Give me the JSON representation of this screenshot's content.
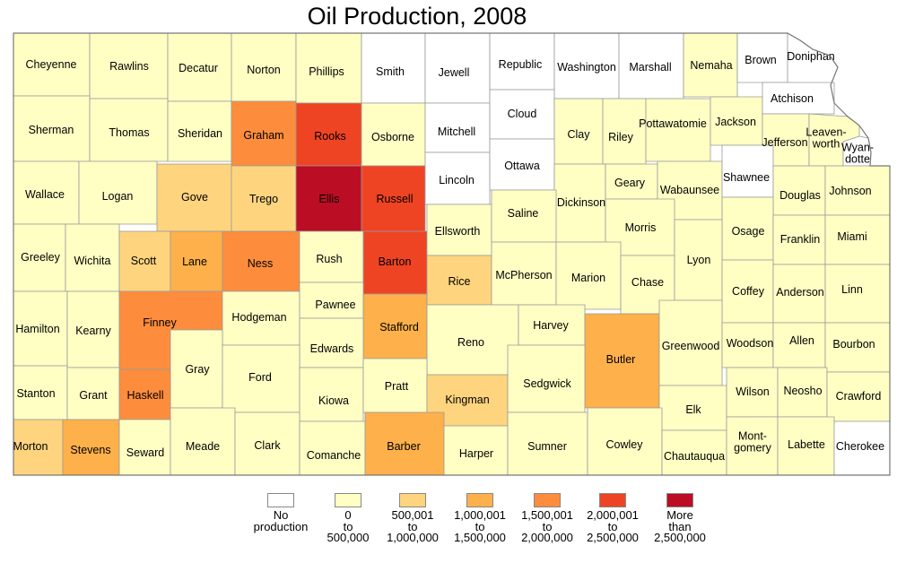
{
  "title": "Oil Production, 2008",
  "colors": {
    "none": "#ffffff",
    "c1": "#ffffc4",
    "c2": "#fed47e",
    "c3": "#feb04a",
    "c4": "#fd8d3c",
    "c5": "#ef4424",
    "c6": "#bb0d24"
  },
  "legend": [
    {
      "cls": "none",
      "lines": [
        "No",
        "production"
      ]
    },
    {
      "cls": "c1",
      "lines": [
        "0",
        "to",
        "500,000"
      ]
    },
    {
      "cls": "c2",
      "lines": [
        "500,001",
        "to",
        "1,000,000"
      ]
    },
    {
      "cls": "c3",
      "lines": [
        "1,000,001",
        "to",
        "1,500,000"
      ]
    },
    {
      "cls": "c4",
      "lines": [
        "1,500,001",
        "to",
        "2,000,000"
      ]
    },
    {
      "cls": "c5",
      "lines": [
        "2,000,001",
        "to",
        "2,500,000"
      ]
    },
    {
      "cls": "c6",
      "lines": [
        "More",
        "than",
        "2,500,000"
      ]
    }
  ],
  "counties": [
    {
      "name": "Cheyenne",
      "cls": "c1"
    },
    {
      "name": "Rawlins",
      "cls": "c1"
    },
    {
      "name": "Decatur",
      "cls": "c1"
    },
    {
      "name": "Norton",
      "cls": "c1"
    },
    {
      "name": "Phillips",
      "cls": "c1"
    },
    {
      "name": "Smith",
      "cls": "none"
    },
    {
      "name": "Jewell",
      "cls": "none"
    },
    {
      "name": "Republic",
      "cls": "none"
    },
    {
      "name": "Washington",
      "cls": "none"
    },
    {
      "name": "Marshall",
      "cls": "none"
    },
    {
      "name": "Nemaha",
      "cls": "c1"
    },
    {
      "name": "Brown",
      "cls": "none"
    },
    {
      "name": "Doniphan",
      "cls": "none"
    },
    {
      "name": "Sherman",
      "cls": "c1"
    },
    {
      "name": "Thomas",
      "cls": "c1"
    },
    {
      "name": "Sheridan",
      "cls": "c1"
    },
    {
      "name": "Graham",
      "cls": "c4"
    },
    {
      "name": "Rooks",
      "cls": "c5"
    },
    {
      "name": "Osborne",
      "cls": "c1"
    },
    {
      "name": "Mitchell",
      "cls": "none"
    },
    {
      "name": "Cloud",
      "cls": "none"
    },
    {
      "name": "Clay",
      "cls": "c1"
    },
    {
      "name": "Riley",
      "cls": "c1"
    },
    {
      "name": "Pottawatomie",
      "cls": "c1"
    },
    {
      "name": "Jackson",
      "cls": "c1"
    },
    {
      "name": "Atchison",
      "cls": "none"
    },
    {
      "name": "Jefferson",
      "cls": "c1"
    },
    {
      "name": "Leavenworth",
      "cls": "c1",
      "label": [
        "Leaven-",
        "worth"
      ]
    },
    {
      "name": "Wyandotte",
      "cls": "none",
      "label": [
        "Wyan-",
        "dotte"
      ]
    },
    {
      "name": "Wallace",
      "cls": "c1"
    },
    {
      "name": "Logan",
      "cls": "c1"
    },
    {
      "name": "Gove",
      "cls": "c2"
    },
    {
      "name": "Trego",
      "cls": "c2"
    },
    {
      "name": "Ellis",
      "cls": "c6"
    },
    {
      "name": "Russell",
      "cls": "c5"
    },
    {
      "name": "Lincoln",
      "cls": "none"
    },
    {
      "name": "Ottawa",
      "cls": "none"
    },
    {
      "name": "Dickinson",
      "cls": "c1"
    },
    {
      "name": "Geary",
      "cls": "c1"
    },
    {
      "name": "Wabaunsee",
      "cls": "c1"
    },
    {
      "name": "Shawnee",
      "cls": "none"
    },
    {
      "name": "Douglas",
      "cls": "c1"
    },
    {
      "name": "Johnson",
      "cls": "c1"
    },
    {
      "name": "Greeley",
      "cls": "c1"
    },
    {
      "name": "Wichita",
      "cls": "c1"
    },
    {
      "name": "Scott",
      "cls": "c2"
    },
    {
      "name": "Lane",
      "cls": "c3"
    },
    {
      "name": "Ness",
      "cls": "c4"
    },
    {
      "name": "Rush",
      "cls": "c1"
    },
    {
      "name": "Barton",
      "cls": "c5"
    },
    {
      "name": "Ellsworth",
      "cls": "c1"
    },
    {
      "name": "Saline",
      "cls": "c1"
    },
    {
      "name": "Morris",
      "cls": "c1"
    },
    {
      "name": "Osage",
      "cls": "c1"
    },
    {
      "name": "Franklin",
      "cls": "c1"
    },
    {
      "name": "Miami",
      "cls": "c1"
    },
    {
      "name": "Rice",
      "cls": "c2"
    },
    {
      "name": "McPherson",
      "cls": "c1"
    },
    {
      "name": "Marion",
      "cls": "c1"
    },
    {
      "name": "Chase",
      "cls": "c1"
    },
    {
      "name": "Lyon",
      "cls": "c1"
    },
    {
      "name": "Coffey",
      "cls": "c1"
    },
    {
      "name": "Anderson",
      "cls": "c1"
    },
    {
      "name": "Linn",
      "cls": "c1"
    },
    {
      "name": "Hamilton",
      "cls": "c1"
    },
    {
      "name": "Kearny",
      "cls": "c1"
    },
    {
      "name": "Finney",
      "cls": "c4"
    },
    {
      "name": "Hodgeman",
      "cls": "c1"
    },
    {
      "name": "Pawnee",
      "cls": "c1"
    },
    {
      "name": "Stafford",
      "cls": "c3"
    },
    {
      "name": "Reno",
      "cls": "c1"
    },
    {
      "name": "Harvey",
      "cls": "c1"
    },
    {
      "name": "Butler",
      "cls": "c3"
    },
    {
      "name": "Greenwood",
      "cls": "c1"
    },
    {
      "name": "Woodson",
      "cls": "c1"
    },
    {
      "name": "Allen",
      "cls": "c1"
    },
    {
      "name": "Bourbon",
      "cls": "c1"
    },
    {
      "name": "Edwards",
      "cls": "c1"
    },
    {
      "name": "Gray",
      "cls": "c1"
    },
    {
      "name": "Ford",
      "cls": "c1"
    },
    {
      "name": "Stanton",
      "cls": "c1"
    },
    {
      "name": "Grant",
      "cls": "c1"
    },
    {
      "name": "Haskell",
      "cls": "c4"
    },
    {
      "name": "Kiowa",
      "cls": "c1"
    },
    {
      "name": "Pratt",
      "cls": "c1"
    },
    {
      "name": "Kingman",
      "cls": "c2"
    },
    {
      "name": "Sedgwick",
      "cls": "c1"
    },
    {
      "name": "Elk",
      "cls": "c1"
    },
    {
      "name": "Wilson",
      "cls": "c1"
    },
    {
      "name": "Neosho",
      "cls": "c1"
    },
    {
      "name": "Crawford",
      "cls": "c1"
    },
    {
      "name": "Morton",
      "cls": "c2"
    },
    {
      "name": "Stevens",
      "cls": "c3"
    },
    {
      "name": "Seward",
      "cls": "c1"
    },
    {
      "name": "Meade",
      "cls": "c1"
    },
    {
      "name": "Clark",
      "cls": "c1"
    },
    {
      "name": "Comanche",
      "cls": "c1"
    },
    {
      "name": "Barber",
      "cls": "c3"
    },
    {
      "name": "Harper",
      "cls": "c1"
    },
    {
      "name": "Sumner",
      "cls": "c1"
    },
    {
      "name": "Cowley",
      "cls": "c1"
    },
    {
      "name": "Chautauqua",
      "cls": "c1"
    },
    {
      "name": "Montgomery",
      "cls": "c1",
      "label": [
        "Mont-",
        "gomery"
      ]
    },
    {
      "name": "Labette",
      "cls": "c1"
    },
    {
      "name": "Cherokee",
      "cls": "none"
    }
  ]
}
